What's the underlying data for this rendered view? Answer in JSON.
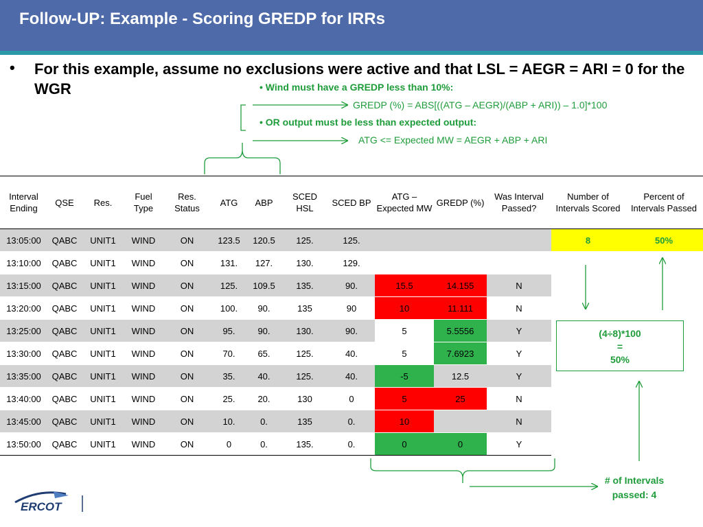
{
  "title": "Follow-UP: Example - Scoring GREDP for IRRs",
  "main_bullet": "For this example, assume no exclusions were active and that LSL = AEGR = ARI = 0 for the WGR",
  "bullet_char": "•",
  "annotations": {
    "wind_rule": "• Wind must have a GREDP less than 10%:",
    "gredp_formula": "GREDP (%) =  ABS[((ATG – AEGR)/(ABP + ARI)) – 1.0]*100",
    "or_rule": "•  OR output must be less than expected output:",
    "atg_formula": "ATG <= Expected MW = AEGR + ABP + ARI",
    "calc_line1": "(4÷8)*100",
    "calc_line2": "=",
    "calc_line3": "50%",
    "intervals_passed": "# of Intervals passed: 4"
  },
  "table": {
    "headers": [
      "Interval Ending",
      "QSE",
      "Res.",
      "Fuel Type",
      "Res. Status",
      "ATG",
      "ABP",
      "SCED HSL",
      "SCED BP",
      "ATG – Expected MW",
      "GREDP (%)",
      "Was Interval Passed?",
      "Number of Intervals Scored",
      "Percent of Intervals Passed"
    ],
    "rows": [
      {
        "interval": "13:05:00",
        "qse": "QABC",
        "res": "UNIT1",
        "fuel": "WIND",
        "status": "ON",
        "atg": "123.5",
        "abp": "120.5",
        "hsl": "125.",
        "bp": "125.",
        "diff": "",
        "gredp": "",
        "passed": ""
      },
      {
        "interval": "13:10:00",
        "qse": "QABC",
        "res": "UNIT1",
        "fuel": "WIND",
        "status": "ON",
        "atg": "131.",
        "abp": "127.",
        "hsl": "130.",
        "bp": "129.",
        "diff": "",
        "gredp": "",
        "passed": ""
      },
      {
        "interval": "13:15:00",
        "qse": "QABC",
        "res": "UNIT1",
        "fuel": "WIND",
        "status": "ON",
        "atg": "125.",
        "abp": "109.5",
        "hsl": "135.",
        "bp": "90.",
        "diff": "15.5",
        "gredp": "14.155",
        "passed": "N"
      },
      {
        "interval": "13:20:00",
        "qse": "QABC",
        "res": "UNIT1",
        "fuel": "WIND",
        "status": "ON",
        "atg": "100.",
        "abp": "90.",
        "hsl": "135",
        "bp": "90",
        "diff": "10",
        "gredp": "11.111",
        "passed": "N"
      },
      {
        "interval": "13:25:00",
        "qse": "QABC",
        "res": "UNIT1",
        "fuel": "WIND",
        "status": "ON",
        "atg": "95.",
        "abp": "90.",
        "hsl": "130.",
        "bp": "90.",
        "diff": "5",
        "gredp": "5.5556",
        "passed": "Y"
      },
      {
        "interval": "13:30:00",
        "qse": "QABC",
        "res": "UNIT1",
        "fuel": "WIND",
        "status": "ON",
        "atg": "70.",
        "abp": "65.",
        "hsl": "125.",
        "bp": "40.",
        "diff": "5",
        "gredp": "7.6923",
        "passed": "Y"
      },
      {
        "interval": "13:35:00",
        "qse": "QABC",
        "res": "UNIT1",
        "fuel": "WIND",
        "status": "ON",
        "atg": "35.",
        "abp": "40.",
        "hsl": "125.",
        "bp": "40.",
        "diff": "-5",
        "gredp": "12.5",
        "passed": "Y"
      },
      {
        "interval": "13:40:00",
        "qse": "QABC",
        "res": "UNIT1",
        "fuel": "WIND",
        "status": "ON",
        "atg": "25.",
        "abp": "20.",
        "hsl": "130",
        "bp": "0",
        "diff": "5",
        "gredp": "25",
        "passed": "N"
      },
      {
        "interval": "13:45:00",
        "qse": "QABC",
        "res": "UNIT1",
        "fuel": "WIND",
        "status": "ON",
        "atg": "10.",
        "abp": "0.",
        "hsl": "135",
        "bp": "0.",
        "diff": "10",
        "gredp": "",
        "passed": "N"
      },
      {
        "interval": "13:50:00",
        "qse": "QABC",
        "res": "UNIT1",
        "fuel": "WIND",
        "status": "ON",
        "atg": "0",
        "abp": "0.",
        "hsl": "135.",
        "bp": "0.",
        "diff": "0",
        "gredp": "0",
        "passed": "Y"
      }
    ],
    "intervals_scored": "8",
    "percent_passed": "50%"
  },
  "logo_text": "ERCOT",
  "colors": {
    "title_bar": "#4f6aa8",
    "teal_rule": "#2a9aaa",
    "annotation_green": "#1e9c3a",
    "fail_red": "#ff0000",
    "pass_green": "#2fb24c",
    "row_grey": "#d3d3d3",
    "highlight_yellow": "#ffff00",
    "logo_navy": "#1f3c73"
  }
}
